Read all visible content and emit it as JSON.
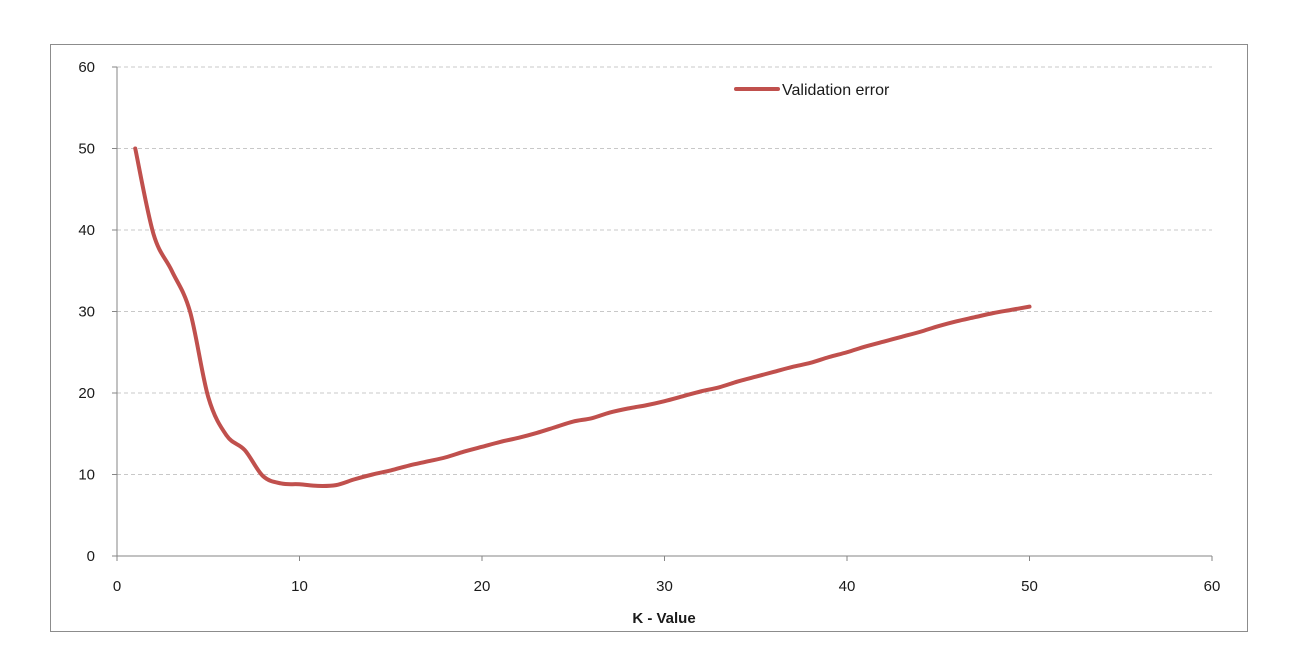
{
  "chart_data": {
    "type": "line",
    "title": "",
    "xlabel": "K - Value",
    "ylabel": "",
    "xlim": [
      0,
      60
    ],
    "ylim": [
      0,
      60
    ],
    "xticks": [
      0,
      10,
      20,
      30,
      40,
      50,
      60
    ],
    "yticks": [
      0,
      10,
      20,
      30,
      40,
      50,
      60
    ],
    "grid": true,
    "legend_position": "top-right",
    "series": [
      {
        "name": "Validation error",
        "color": "#c0504d",
        "x": [
          1,
          2,
          3,
          4,
          5,
          6,
          7,
          8,
          9,
          10,
          11,
          12,
          13,
          14,
          15,
          16,
          17,
          18,
          19,
          20,
          21,
          22,
          23,
          24,
          25,
          26,
          27,
          28,
          29,
          30,
          31,
          32,
          33,
          34,
          35,
          36,
          37,
          38,
          39,
          40,
          41,
          42,
          43,
          44,
          45,
          46,
          47,
          48,
          49,
          50
        ],
        "y": [
          50,
          39.5,
          35,
          30,
          19.5,
          14.8,
          13,
          9.8,
          8.9,
          8.8,
          8.6,
          8.7,
          9.4,
          10,
          10.5,
          11.1,
          11.6,
          12.1,
          12.8,
          13.4,
          14,
          14.5,
          15.1,
          15.8,
          16.5,
          16.9,
          17.6,
          18.1,
          18.5,
          19,
          19.6,
          20.2,
          20.7,
          21.4,
          22,
          22.6,
          23.2,
          23.7,
          24.4,
          25,
          25.7,
          26.3,
          26.9,
          27.5,
          28.2,
          28.8,
          29.3,
          29.8,
          30.2,
          30.6
        ]
      }
    ]
  }
}
